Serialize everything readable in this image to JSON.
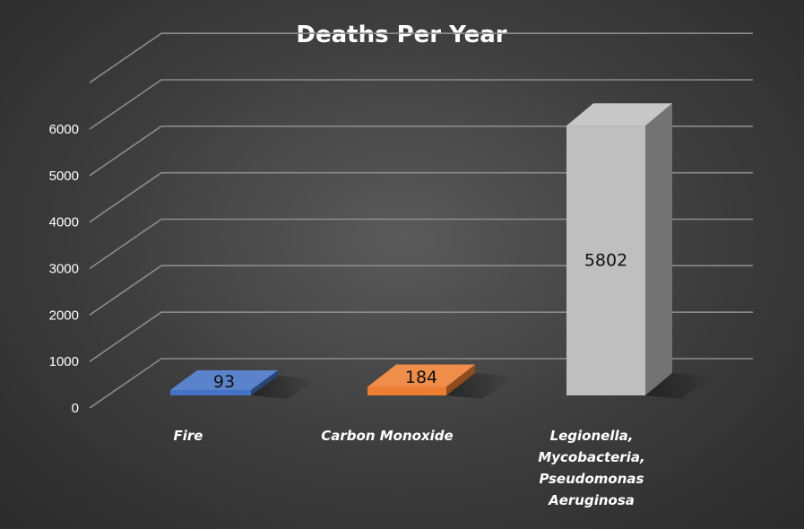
{
  "chart_data": {
    "type": "bar",
    "title": "Deaths Per Year",
    "categories": [
      [
        "Fire"
      ],
      [
        "Carbon Monoxide"
      ],
      [
        "Legionella,",
        "Mycobacteria,",
        "Pseudomonas",
        "Aeruginosa"
      ]
    ],
    "values": [
      93,
      184,
      5802
    ],
    "colors": [
      "#4472c4",
      "#ed7d31",
      "#bfbfbf"
    ],
    "ylim": [
      0,
      6000
    ],
    "yticks": [
      0,
      1000,
      2000,
      3000,
      4000,
      5000,
      6000
    ],
    "grid": true,
    "style": "3d-column"
  }
}
